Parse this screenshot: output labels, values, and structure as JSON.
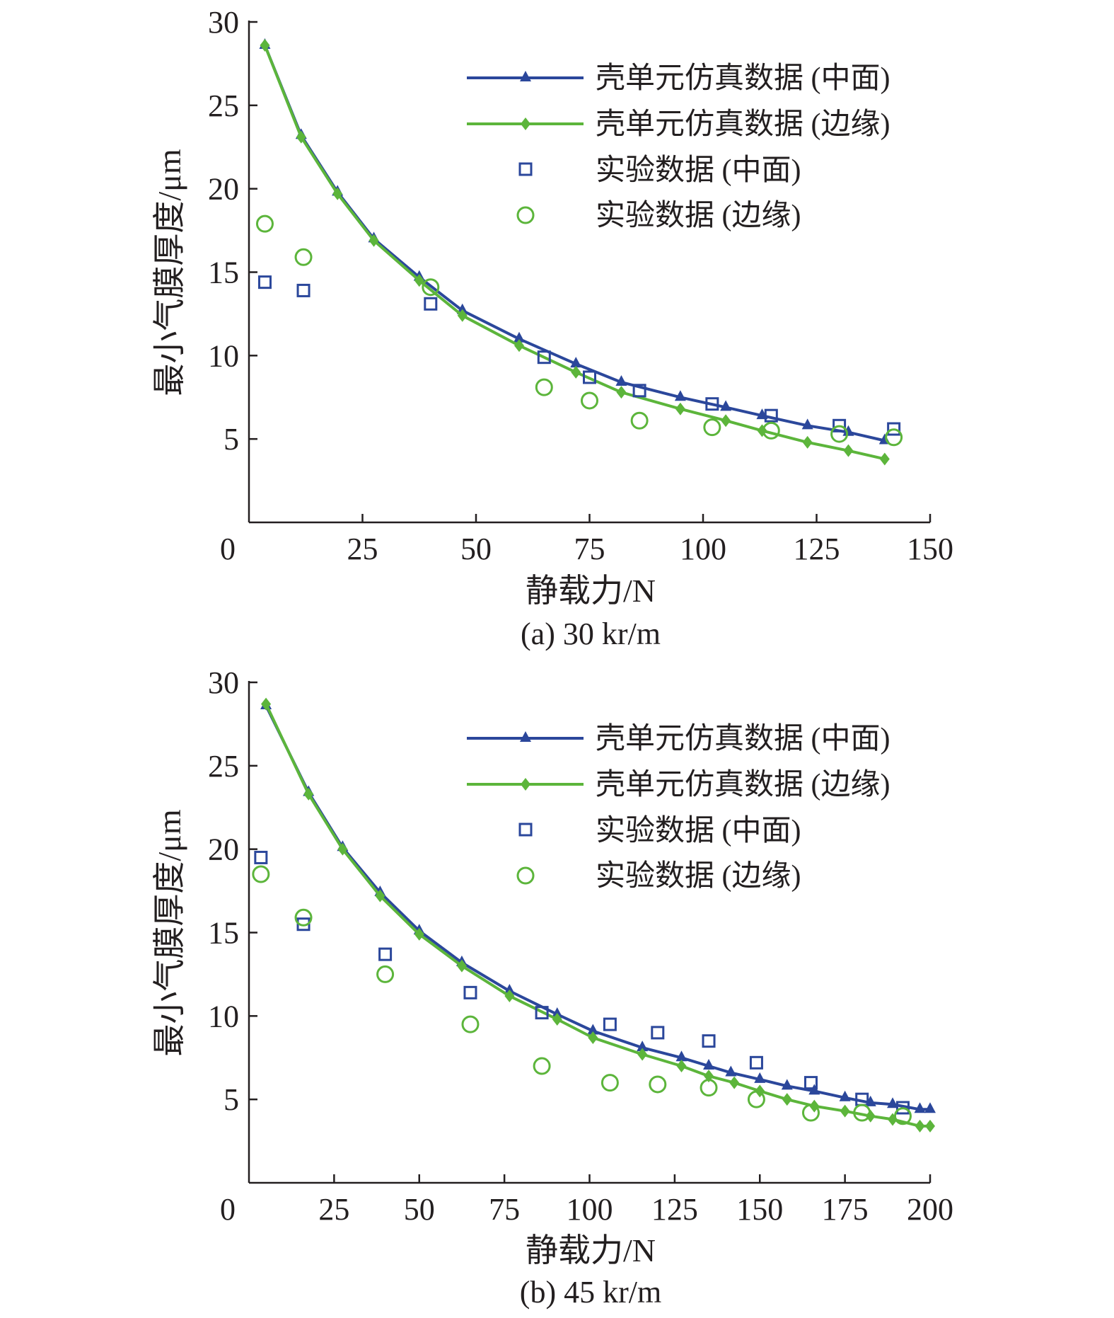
{
  "legend": {
    "shell_mid": "壳单元仿真数据 (中面)",
    "shell_edge": "壳单元仿真数据 (边缘)",
    "exp_mid": "实验数据 (中面)",
    "exp_edge": "实验数据 (边缘)"
  },
  "colors": {
    "mid": "#2b479b",
    "edge": "#5cb53b",
    "axis": "#231f20"
  },
  "chart_data": [
    {
      "type": "line",
      "caption": "(a) 30 kr/m",
      "xlabel": "静载力/N",
      "ylabel": "最小气膜厚度/μm",
      "xlim": [
        0,
        150
      ],
      "ylim": [
        0,
        30
      ],
      "xticks": [
        0,
        25,
        50,
        75,
        100,
        125,
        150
      ],
      "yticks": [
        5,
        10,
        15,
        20,
        25,
        30
      ],
      "x_origin_label": "0",
      "series": [
        {
          "name": "壳单元仿真数据 (中面)",
          "kind": "line-triangle",
          "color": "mid",
          "x": [
            3.5,
            11.5,
            19.5,
            27.5,
            37.5,
            47,
            59.5,
            72,
            82,
            95,
            105,
            113,
            123,
            132,
            140
          ],
          "y": [
            28.6,
            23.2,
            19.8,
            17.0,
            14.7,
            12.7,
            11.0,
            9.5,
            8.4,
            7.5,
            6.9,
            6.4,
            5.8,
            5.4,
            4.9
          ]
        },
        {
          "name": "壳单元仿真数据 (边缘)",
          "kind": "line-diamond",
          "color": "edge",
          "x": [
            3.5,
            11.5,
            19.5,
            27.5,
            37.5,
            47,
            59.5,
            72,
            82,
            95,
            105,
            113,
            123,
            132,
            140
          ],
          "y": [
            28.6,
            23.1,
            19.7,
            16.9,
            14.5,
            12.4,
            10.6,
            9.0,
            7.8,
            6.8,
            6.1,
            5.5,
            4.8,
            4.3,
            3.8
          ]
        },
        {
          "name": "实验数据 (中面)",
          "kind": "scatter-square",
          "color": "mid",
          "x": [
            3.5,
            12,
            40,
            65,
            75,
            86,
            102,
            115,
            130,
            142
          ],
          "y": [
            14.4,
            13.9,
            13.1,
            9.9,
            8.7,
            7.9,
            7.1,
            6.4,
            5.8,
            5.6
          ]
        },
        {
          "name": "实验数据 (边缘)",
          "kind": "scatter-circle",
          "color": "edge",
          "x": [
            3.5,
            12,
            40,
            65,
            75,
            86,
            102,
            115,
            130,
            142
          ],
          "y": [
            17.9,
            15.9,
            14.1,
            8.1,
            7.3,
            6.1,
            5.7,
            5.5,
            5.3,
            5.1
          ]
        }
      ]
    },
    {
      "type": "line",
      "caption": "(b) 45 kr/m",
      "xlabel": "静载力/N",
      "ylabel": "最小气膜厚度/μm",
      "xlim": [
        0,
        200
      ],
      "ylim": [
        0,
        30
      ],
      "xticks": [
        0,
        25,
        50,
        75,
        100,
        125,
        150,
        175,
        200
      ],
      "yticks": [
        5,
        10,
        15,
        20,
        25,
        30
      ],
      "x_origin_label": "0",
      "series": [
        {
          "name": "壳单元仿真数据 (中面)",
          "kind": "line-triangle",
          "color": "mid",
          "x": [
            5,
            17.5,
            27.5,
            38.5,
            50,
            62.5,
            76.5,
            90.5,
            101,
            115.5,
            127,
            135,
            141.5,
            150,
            158,
            166,
            175,
            182.5,
            189,
            197,
            200
          ],
          "y": [
            28.6,
            23.4,
            20.1,
            17.4,
            15.1,
            13.2,
            11.5,
            10.1,
            9.1,
            8.1,
            7.5,
            7.0,
            6.6,
            6.2,
            5.8,
            5.5,
            5.1,
            4.8,
            4.7,
            4.4,
            4.4
          ]
        },
        {
          "name": "壳单元仿真数据 (边缘)",
          "kind": "line-diamond",
          "color": "edge",
          "x": [
            5,
            17.5,
            27.5,
            38.5,
            50,
            62.5,
            76.5,
            90.5,
            101,
            115.5,
            127,
            135,
            142.5,
            150,
            158,
            166,
            175,
            182.5,
            189,
            197,
            200
          ],
          "y": [
            28.7,
            23.3,
            20.0,
            17.2,
            14.9,
            13.0,
            11.2,
            9.8,
            8.7,
            7.7,
            7.0,
            6.4,
            6.0,
            5.5,
            5.0,
            4.6,
            4.3,
            4.0,
            3.8,
            3.4,
            3.4
          ]
        },
        {
          "name": "实验数据 (中面)",
          "kind": "scatter-square",
          "color": "mid",
          "x": [
            3.5,
            16,
            40,
            65,
            86,
            106,
            120,
            135,
            149,
            165,
            180,
            192
          ],
          "y": [
            19.5,
            15.5,
            13.7,
            11.4,
            10.2,
            9.5,
            9.0,
            8.5,
            7.2,
            6.0,
            5.0,
            4.5
          ]
        },
        {
          "name": "实验数据 (边缘)",
          "kind": "scatter-circle",
          "color": "edge",
          "x": [
            3.5,
            16,
            40,
            65,
            86,
            106,
            120,
            135,
            149,
            165,
            180,
            192
          ],
          "y": [
            18.5,
            15.9,
            12.5,
            9.5,
            7.0,
            6.0,
            5.9,
            5.7,
            5.0,
            4.2,
            4.2,
            4.0
          ]
        }
      ]
    }
  ]
}
